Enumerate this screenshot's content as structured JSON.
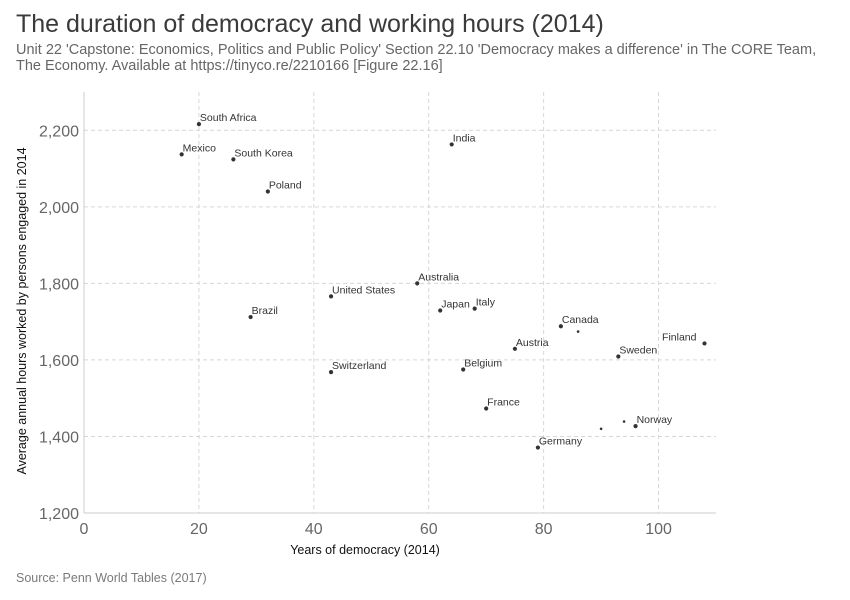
{
  "header": {
    "title": "The duration of democracy and working hours (2014)",
    "subtitle": "Unit 22 'Capstone: Economics, Politics and Public Policy' Section 22.10 'Democracy makes a difference' in The CORE Team, The Economy. Available at https://tinyco.re/2210166 [Figure 22.16]"
  },
  "footer": {
    "source": "Source: Penn World Tables (2017)"
  },
  "chart_data": {
    "type": "scatter",
    "title": "The duration of democracy and working hours (2014)",
    "xlabel": "Years of democracy (2014)",
    "ylabel": "Average annual hours worked by persons engaged in 2014",
    "xlim": [
      0,
      110
    ],
    "ylim": [
      1200,
      2300
    ],
    "x_ticks": [
      0,
      20,
      40,
      60,
      80,
      100
    ],
    "x_tick_labels": [
      "0",
      "20",
      "40",
      "60",
      "80",
      "100"
    ],
    "y_ticks": [
      1200,
      1400,
      1600,
      1800,
      2000,
      2200
    ],
    "y_tick_labels": [
      "1,200",
      "1,400",
      "1,600",
      "1,800",
      "2,000",
      "2,200"
    ],
    "grid": true,
    "point_color": "#333333",
    "points": [
      {
        "label": "South Africa",
        "x": 20,
        "y": 2216
      },
      {
        "label": "Mexico",
        "x": 17,
        "y": 2137
      },
      {
        "label": "South Korea",
        "x": 26,
        "y": 2124
      },
      {
        "label": "Poland",
        "x": 32,
        "y": 2040
      },
      {
        "label": "India",
        "x": 64,
        "y": 2163
      },
      {
        "label": "Australia",
        "x": 58,
        "y": 1800
      },
      {
        "label": "United States",
        "x": 43,
        "y": 1766
      },
      {
        "label": "Brazil",
        "x": 29,
        "y": 1712
      },
      {
        "label": "Japan",
        "x": 62,
        "y": 1729
      },
      {
        "label": "Italy",
        "x": 68,
        "y": 1734
      },
      {
        "label": "Canada",
        "x": 83,
        "y": 1688
      },
      {
        "label": "",
        "x": 86,
        "y": 1674
      },
      {
        "label": "Finland",
        "x": 108,
        "y": 1643
      },
      {
        "label": "Austria",
        "x": 75,
        "y": 1629
      },
      {
        "label": "Sweden",
        "x": 93,
        "y": 1609
      },
      {
        "label": "Switzerland",
        "x": 43,
        "y": 1568
      },
      {
        "label": "Belgium",
        "x": 66,
        "y": 1575
      },
      {
        "label": "France",
        "x": 70,
        "y": 1473
      },
      {
        "label": "Norway",
        "x": 96,
        "y": 1427
      },
      {
        "label": "",
        "x": 94,
        "y": 1439
      },
      {
        "label": "",
        "x": 90,
        "y": 1420
      },
      {
        "label": "Germany",
        "x": 79,
        "y": 1371
      }
    ]
  }
}
